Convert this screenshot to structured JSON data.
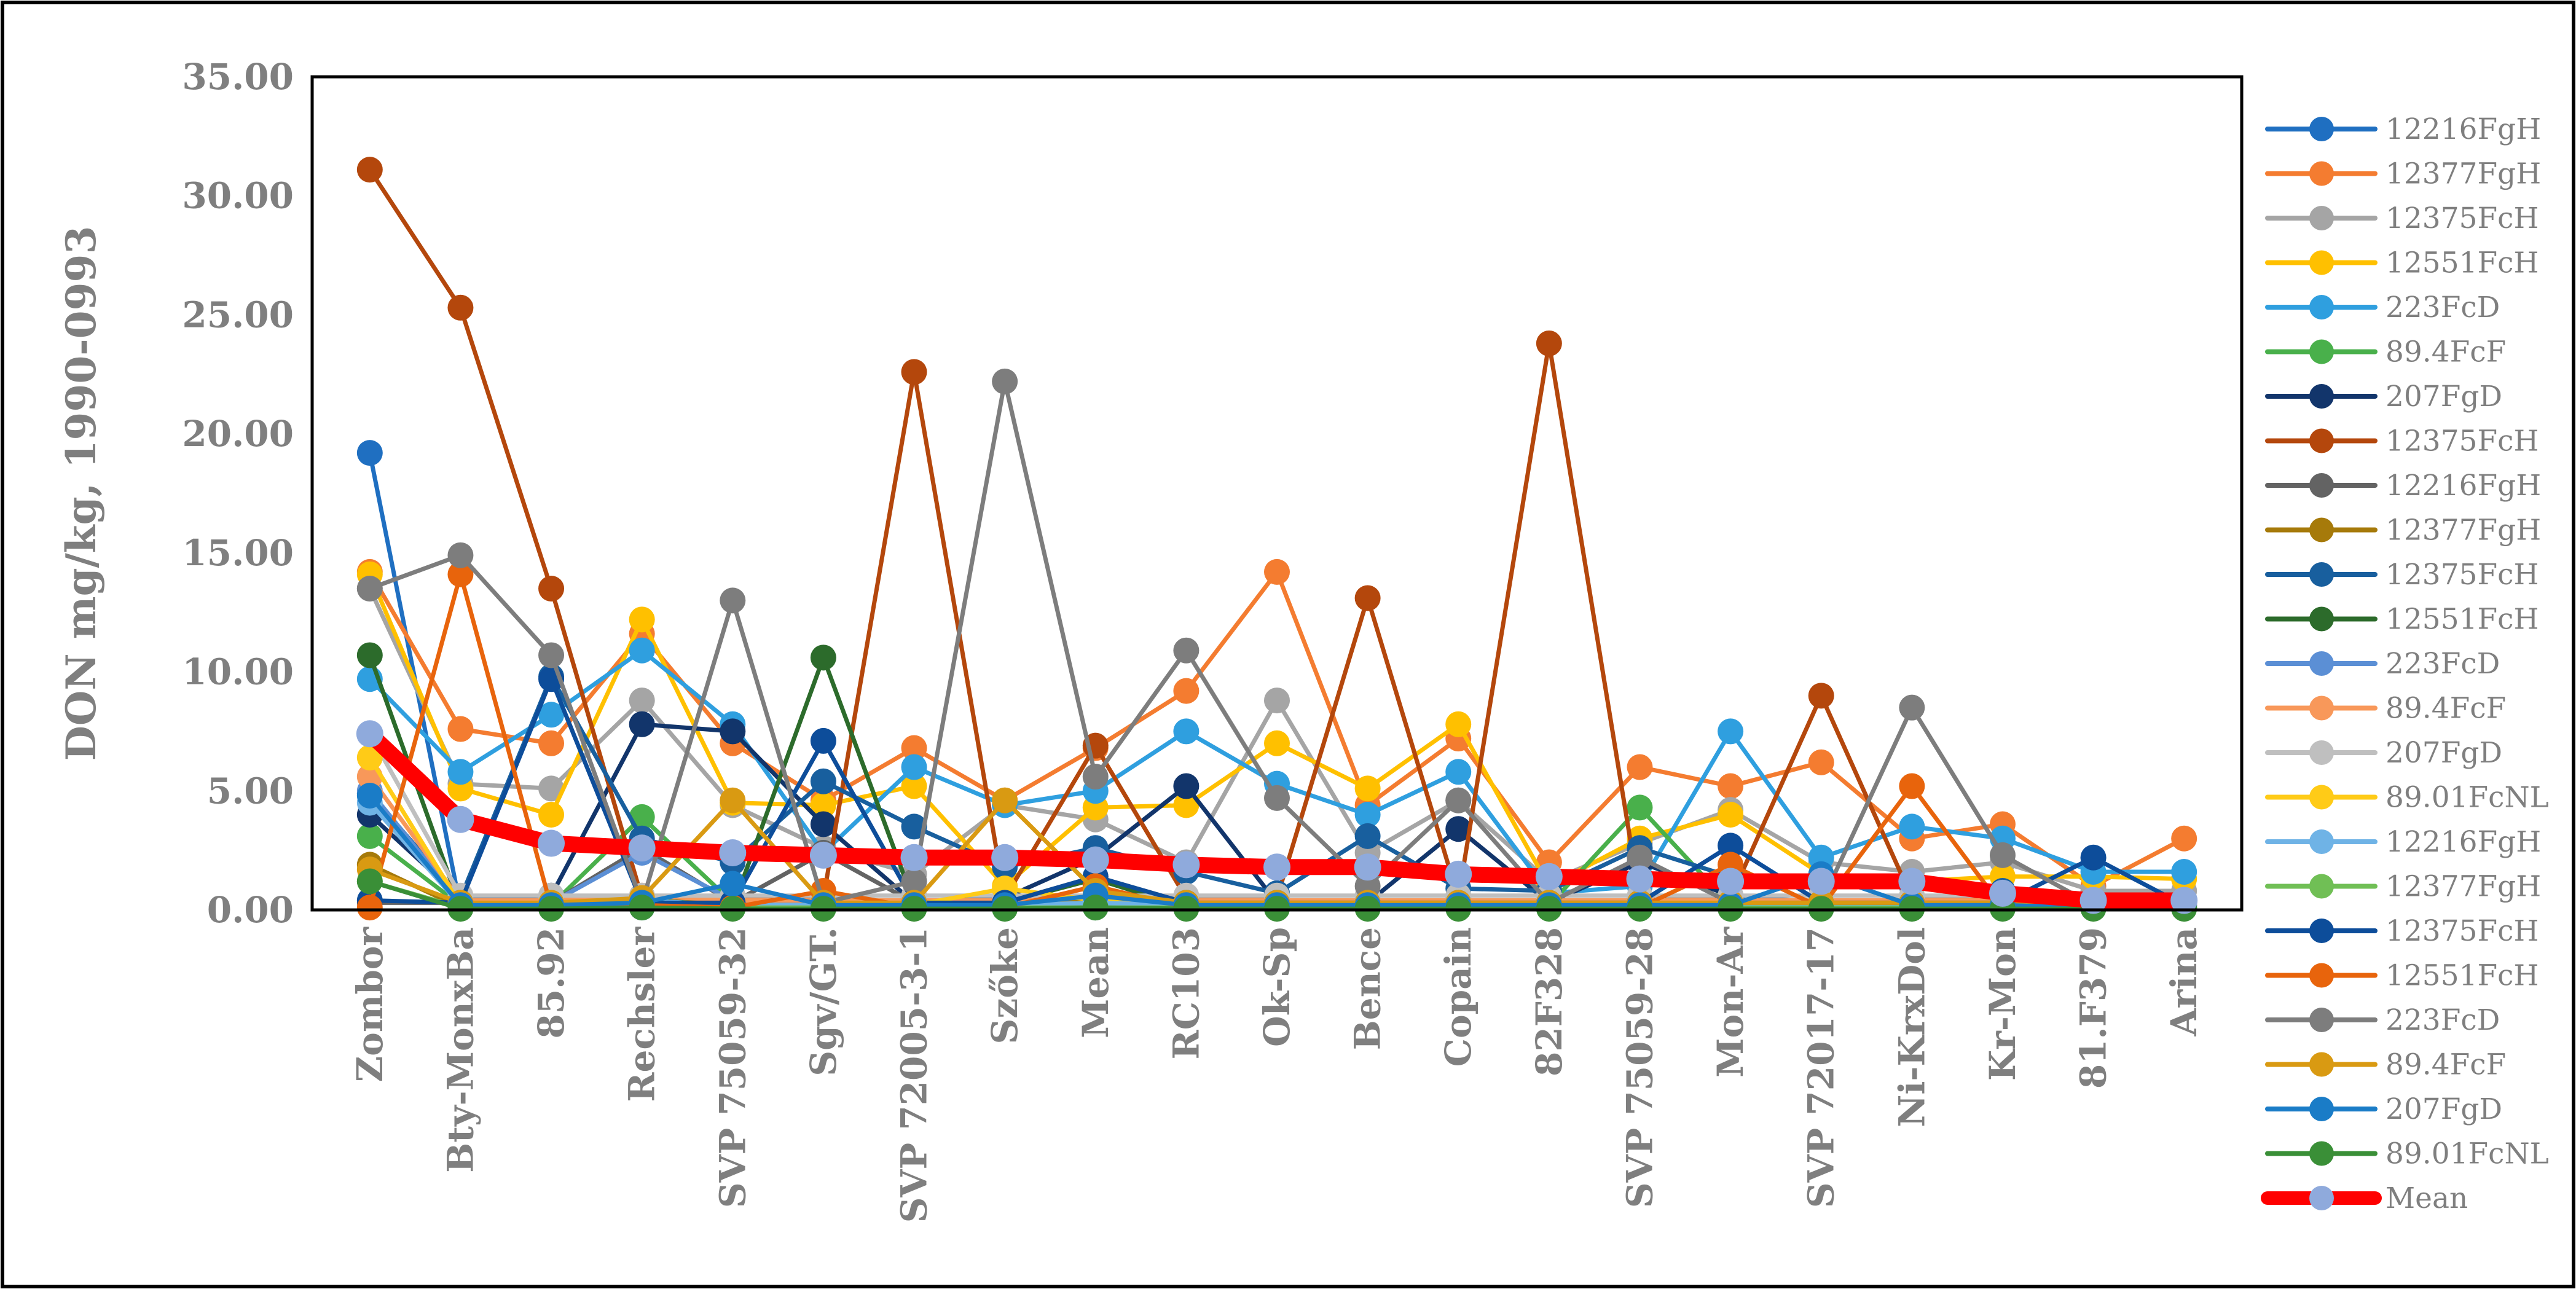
{
  "chart_data": {
    "type": "line",
    "title": "",
    "xlabel": "",
    "ylabel": "DON mg/kg, 1990-0993",
    "ylim": [
      0,
      35
    ],
    "yticks": [
      "0.00",
      "5.00",
      "10.00",
      "15.00",
      "20.00",
      "25.00",
      "30.00",
      "35.00"
    ],
    "categories": [
      "Zombor",
      "Bty-MonxBa",
      "85.92",
      "Rechsler",
      "SVP 75059-32",
      "Sgv/GT.",
      "SVP 72005-3-1",
      "Szőke",
      "Mean",
      "RC103",
      "Ok-Sp",
      "Bence",
      "Copain",
      "82F328",
      "SVP 75059-28",
      "Mon-Ar",
      "SVP 72017-17",
      "Ni-KrxDol",
      "Kr-Mon",
      "81.F379",
      "Arina"
    ],
    "legend_position": "right",
    "series": [
      {
        "name": "12216FgH",
        "color": "#1f6fc1",
        "values": [
          19.2,
          0.1,
          0.1,
          0.1,
          0.1,
          0.1,
          0.1,
          0.1,
          0.1,
          0.1,
          0.1,
          0.1,
          0.1,
          0.1,
          0.1,
          0.1,
          0.1,
          0.1,
          0.1,
          0.1,
          0.1
        ]
      },
      {
        "name": "12377FgH",
        "color": "#f47c30",
        "values": [
          14.2,
          7.6,
          7.0,
          11.6,
          7.0,
          4.6,
          6.8,
          4.6,
          6.8,
          9.2,
          14.2,
          4.4,
          7.2,
          2.0,
          6.0,
          5.2,
          6.2,
          3.0,
          3.6,
          1.0,
          3.0
        ]
      },
      {
        "name": "12375FcH",
        "color": "#a5a5a5",
        "values": [
          13.5,
          5.3,
          5.1,
          8.8,
          4.4,
          2.6,
          1.5,
          4.4,
          3.8,
          2.0,
          8.8,
          2.4,
          4.6,
          1.2,
          2.8,
          4.2,
          2.0,
          1.6,
          2.0,
          0.8,
          0.8
        ]
      },
      {
        "name": "12551FcH",
        "color": "#ffc000",
        "values": [
          14.1,
          5.1,
          4.0,
          12.2,
          4.5,
          4.4,
          5.2,
          1.0,
          4.3,
          4.4,
          7.0,
          5.1,
          7.8,
          1.0,
          3.0,
          4.0,
          1.5,
          1.2,
          1.4,
          1.4,
          1.3
        ]
      },
      {
        "name": "223FcD",
        "color": "#2f9fdf",
        "values": [
          9.7,
          5.8,
          8.2,
          10.9,
          7.8,
          2.4,
          6.0,
          4.4,
          5.0,
          7.5,
          5.3,
          4.0,
          5.8,
          0.7,
          1.0,
          7.5,
          2.2,
          3.5,
          3.0,
          1.6,
          1.6
        ]
      },
      {
        "name": "89.4FcF",
        "color": "#49b04b",
        "values": [
          3.1,
          0.2,
          0.2,
          3.9,
          0.3,
          0.2,
          0.3,
          0.3,
          0.4,
          0.2,
          0.3,
          0.3,
          0.2,
          0.2,
          4.3,
          0.2,
          0.2,
          0.2,
          0.2,
          0.1,
          0.1
        ]
      },
      {
        "name": "207FgD",
        "color": "#12356b",
        "values": [
          4.0,
          0.5,
          0.6,
          7.8,
          7.5,
          3.6,
          0.3,
          0.5,
          2.2,
          5.2,
          0.3,
          0.3,
          3.4,
          0.3,
          2.0,
          0.6,
          0.3,
          0.3,
          0.2,
          0.2,
          0.1
        ]
      },
      {
        "name": "12375FcH",
        "color": "#b4470c",
        "values": [
          31.1,
          25.3,
          13.5,
          0.5,
          0.5,
          0.5,
          22.6,
          0.5,
          6.9,
          0.5,
          0.5,
          13.1,
          0.5,
          23.8,
          0.5,
          0.5,
          9.0,
          0.5,
          0.4,
          0.3,
          0.2
        ]
      },
      {
        "name": "12216FgH",
        "color": "#636363",
        "values": [
          0.3,
          0.3,
          0.3,
          2.6,
          0.3,
          2.4,
          0.3,
          0.3,
          1.4,
          0.3,
          0.3,
          0.3,
          0.3,
          0.3,
          0.3,
          0.3,
          0.3,
          0.3,
          0.3,
          0.2,
          0.1
        ]
      },
      {
        "name": "12377FgH",
        "color": "#a67a0a",
        "values": [
          1.9,
          0.1,
          0.1,
          0.5,
          0.2,
          0.2,
          0.1,
          0.1,
          0.4,
          0.1,
          0.1,
          0.1,
          0.1,
          0.1,
          0.1,
          0.1,
          0.1,
          0.1,
          0.1,
          0.1,
          0.1
        ]
      },
      {
        "name": "12375FcH",
        "color": "#185f9e",
        "values": [
          4.9,
          0.5,
          9.8,
          3.0,
          2.0,
          5.4,
          3.5,
          1.8,
          2.6,
          1.6,
          0.7,
          3.1,
          0.9,
          0.8,
          2.6,
          1.4,
          1.0,
          1.0,
          0.8,
          0.2,
          0.1
        ]
      },
      {
        "name": "12551FcH",
        "color": "#2c6b2b",
        "values": [
          10.7,
          0.1,
          0.1,
          0.5,
          0.1,
          10.6,
          0.3,
          0.3,
          1.3,
          0.1,
          0.1,
          0.3,
          0.3,
          0.1,
          0.3,
          0.1,
          0.1,
          0.1,
          0.1,
          0.1,
          0.1
        ]
      },
      {
        "name": "223FcD",
        "color": "#5b8fd5",
        "values": [
          5.0,
          0.3,
          0.3,
          2.4,
          0.4,
          0.3,
          0.3,
          0.3,
          0.6,
          0.3,
          0.2,
          0.3,
          0.2,
          0.2,
          0.2,
          0.2,
          0.2,
          0.2,
          0.2,
          0.1,
          0.1
        ]
      },
      {
        "name": "89.4FcF",
        "color": "#f8985a",
        "values": [
          5.6,
          0.4,
          0.4,
          0.6,
          0.4,
          0.4,
          0.4,
          0.4,
          0.6,
          0.4,
          0.4,
          0.4,
          0.4,
          0.4,
          0.4,
          0.4,
          0.4,
          0.4,
          0.4,
          0.2,
          0.2
        ]
      },
      {
        "name": "207FgD",
        "color": "#bfbfbf",
        "values": [
          7.4,
          0.6,
          0.6,
          0.6,
          0.6,
          0.6,
          0.6,
          0.6,
          0.6,
          0.6,
          0.6,
          0.6,
          0.6,
          0.6,
          0.6,
          0.6,
          0.6,
          0.6,
          0.6,
          0.3,
          0.2
        ]
      },
      {
        "name": "89.01FcNL",
        "color": "#ffcb17",
        "values": [
          6.4,
          0.2,
          0.2,
          0.4,
          0.2,
          0.2,
          0.2,
          0.9,
          0.4,
          0.2,
          0.2,
          0.2,
          0.2,
          0.2,
          0.2,
          0.2,
          0.2,
          0.2,
          0.2,
          0.1,
          0.1
        ]
      },
      {
        "name": "12216FgH",
        "color": "#6fb3e6",
        "values": [
          4.5,
          0.2,
          0.2,
          0.4,
          0.2,
          0.2,
          0.2,
          0.2,
          0.3,
          0.2,
          0.2,
          0.2,
          0.2,
          0.2,
          0.2,
          0.2,
          0.2,
          0.2,
          0.2,
          0.1,
          0.1
        ]
      },
      {
        "name": "12377FgH",
        "color": "#70bf55",
        "values": [
          1.2,
          0.1,
          0.1,
          0.2,
          0.1,
          0.1,
          0.1,
          0.1,
          0.1,
          0.1,
          0.1,
          0.1,
          0.1,
          0.1,
          0.1,
          0.1,
          0.1,
          0.1,
          0.1,
          0.1,
          0.1
        ]
      },
      {
        "name": "12375FcH",
        "color": "#0d4d9a",
        "values": [
          0.4,
          0.3,
          9.7,
          0.3,
          0.3,
          7.1,
          0.3,
          0.3,
          1.4,
          0.3,
          0.3,
          0.3,
          0.3,
          0.3,
          0.3,
          2.7,
          0.3,
          0.3,
          0.3,
          2.2,
          0.2
        ]
      },
      {
        "name": "12551FcH",
        "color": "#e8640c",
        "values": [
          0.1,
          14.1,
          0.1,
          0.2,
          0.1,
          0.8,
          0.1,
          0.1,
          1.0,
          0.1,
          0.1,
          0.1,
          0.1,
          0.1,
          0.1,
          1.9,
          0.1,
          5.2,
          0.1,
          0.1,
          0.1
        ]
      },
      {
        "name": "223FcD",
        "color": "#7d7d7d",
        "values": [
          13.5,
          14.9,
          10.7,
          0.3,
          13.0,
          0.3,
          1.2,
          22.2,
          5.6,
          10.9,
          4.7,
          1.0,
          4.6,
          0.3,
          2.2,
          0.3,
          0.3,
          8.5,
          2.3,
          0.2,
          0.2
        ]
      },
      {
        "name": "89.4FcF",
        "color": "#d99a12",
        "values": [
          1.7,
          0.3,
          0.3,
          0.5,
          4.6,
          0.3,
          0.3,
          4.6,
          0.8,
          0.3,
          0.3,
          0.3,
          0.3,
          0.3,
          0.3,
          0.3,
          0.3,
          0.3,
          0.3,
          0.1,
          0.1
        ]
      },
      {
        "name": "207FgD",
        "color": "#1a7cc7",
        "values": [
          4.8,
          0.2,
          0.2,
          0.3,
          1.1,
          0.2,
          0.2,
          0.2,
          0.6,
          0.2,
          0.2,
          0.2,
          0.2,
          0.2,
          0.2,
          0.2,
          1.5,
          0.2,
          0.2,
          0.1,
          0.1
        ]
      },
      {
        "name": "89.01FcNL",
        "color": "#3a8f37",
        "values": [
          1.2,
          0.05,
          0.05,
          0.1,
          0.05,
          0.05,
          0.05,
          0.05,
          0.1,
          0.05,
          0.05,
          0.05,
          0.05,
          0.05,
          0.05,
          0.05,
          0.05,
          0.05,
          0.05,
          0.05,
          0.05
        ]
      },
      {
        "name": "Mean",
        "color": "#ff0000",
        "marker": "#8faadc",
        "mean": true,
        "values": [
          7.4,
          3.8,
          2.8,
          2.6,
          2.4,
          2.3,
          2.2,
          2.2,
          2.1,
          1.9,
          1.8,
          1.8,
          1.5,
          1.4,
          1.3,
          1.2,
          1.2,
          1.2,
          0.7,
          0.4,
          0.4
        ]
      }
    ]
  }
}
